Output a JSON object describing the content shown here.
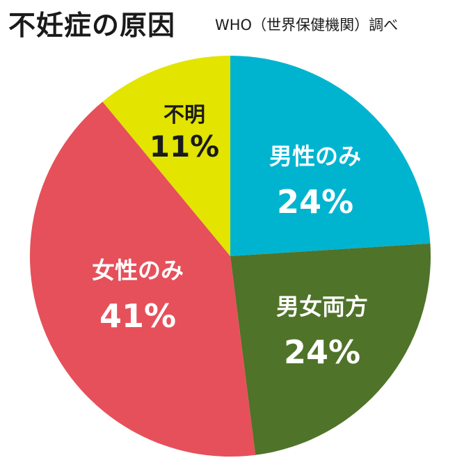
{
  "header": {
    "title": "不妊症の原因",
    "source": "WHO（世界保健機関）調べ"
  },
  "colors": {
    "cyan": "#00b4d0",
    "green": "#4f7328",
    "red": "#e6505a",
    "yellow": "#e3e400",
    "label_light": "#ffffff",
    "label_dark": "#1a1a1a"
  },
  "chart_data": {
    "type": "pie",
    "title": "不妊症の原因",
    "slices": [
      {
        "label": "男性のみ",
        "value": 24,
        "value_text": "24%",
        "color": "#00b4d0"
      },
      {
        "label": "男女両方",
        "value": 24,
        "value_text": "24%",
        "color": "#4f7328"
      },
      {
        "label": "女性のみ",
        "value": 41,
        "value_text": "41%",
        "color": "#e6505a"
      },
      {
        "label": "不明",
        "value": 11,
        "value_text": "11%",
        "color": "#e3e400"
      }
    ]
  }
}
